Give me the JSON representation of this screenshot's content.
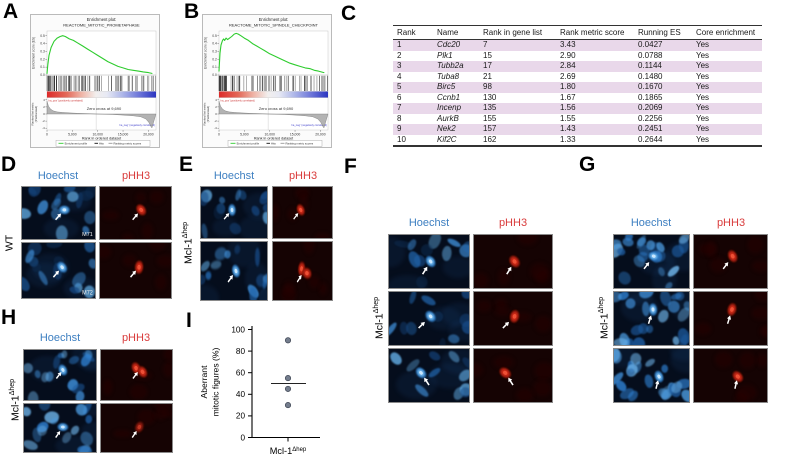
{
  "colors": {
    "hoechst_blue": "#3d7fc1",
    "phh3_red": "#d93b3b",
    "table_stripe": "#e9d8ea",
    "gsea_green": "#2ecc2e",
    "scatter_point": "#5c6679"
  },
  "panel_labels": {
    "A": "A",
    "B": "B",
    "C": "C",
    "D": "D",
    "E": "E",
    "F": "F",
    "G": "G",
    "H": "H",
    "I": "I"
  },
  "gsea_common": {
    "xlabel": "Rank in ordered dataset",
    "es_ylabel": "Enrichment score (ES)",
    "rank_ylabel1": "Ranked list metric",
    "rank_ylabel2": "(PreRanked)",
    "xticks": [
      "0",
      "5,000",
      "10,000",
      "15,000",
      "20,000"
    ],
    "xtick_values": [
      0,
      5000,
      10000,
      15000,
      20000
    ],
    "es_yticks": [
      "0.5",
      "0.4",
      "0.3",
      "0.2",
      "0.1",
      "0.0"
    ],
    "rank_yticks": [
      "4",
      "2",
      "0",
      "-2",
      "-4"
    ],
    "legend": [
      "Enrichment profile",
      "Hits",
      "Ranking metric scores"
    ],
    "pos_note": "'na_pos' (positively correlated)",
    "neg_note": "'na_neg' (negatively correlated)"
  },
  "gsea_a": {
    "title1": "Enrichment plot:",
    "title2": "REACTOME_MITOTIC_PROMETAPHASE",
    "zero_cross": "Zero cross at 9,690"
  },
  "gsea_b": {
    "title1": "Enrichment plot:",
    "title2": "REACTOME_MITOTIC_SPINDLE_CHECKPOINT",
    "zero_cross": "Zero cross at 9,690"
  },
  "table": {
    "headers": [
      "Rank",
      "Name",
      "Rank in gene list",
      "Rank metric score",
      "Running ES",
      "Core enrichment"
    ],
    "rows": [
      [
        "1",
        "Cdc20",
        "7",
        "3.43",
        "0.0427",
        "Yes"
      ],
      [
        "2",
        "Plk1",
        "15",
        "2.90",
        "0.0788",
        "Yes"
      ],
      [
        "3",
        "Tubb2a",
        "17",
        "2.84",
        "0.1144",
        "Yes"
      ],
      [
        "4",
        "Tuba8",
        "21",
        "2.69",
        "0.1480",
        "Yes"
      ],
      [
        "5",
        "Birc5",
        "98",
        "1.80",
        "0.1670",
        "Yes"
      ],
      [
        "6",
        "Ccnb1",
        "130",
        "1.67",
        "0.1865",
        "Yes"
      ],
      [
        "7",
        "Incenp",
        "135",
        "1.56",
        "0.2069",
        "Yes"
      ],
      [
        "8",
        "AurkB",
        "155",
        "1.55",
        "0.2256",
        "Yes"
      ],
      [
        "9",
        "Nek2",
        "157",
        "1.43",
        "0.2451",
        "Yes"
      ],
      [
        "10",
        "Kif2C",
        "162",
        "1.33",
        "0.2644",
        "Yes"
      ]
    ]
  },
  "micro_panels": {
    "D": {
      "col1": "Hoechst",
      "col2": "pHH3",
      "side_base": "WT",
      "side_sup": "",
      "rows": [
        {
          "tag": "M71",
          "arrow": [
            0.46,
            0.63
          ],
          "spot": [
            0.58,
            0.44
          ]
        },
        {
          "tag": "M72",
          "arrow": [
            0.43,
            0.62
          ],
          "spot": [
            0.55,
            0.44
          ]
        }
      ]
    },
    "E": {
      "col1": "Hoechst",
      "col2": "pHH3",
      "side_base": "Mcl-1",
      "side_sup": "Δhep",
      "rows": [
        {
          "arrow": [
            0.35,
            0.63
          ],
          "spot": [
            0.47,
            0.45
          ]
        },
        {
          "arrow": [
            0.41,
            0.69
          ],
          "spot": [
            0.53,
            0.5
          ],
          "double": true
        }
      ]
    },
    "F": {
      "col1": "Hoechst",
      "col2": "pHH3",
      "side_base": "Mcl-1",
      "side_sup": "Δhep",
      "rows": [
        {
          "arrow": [
            0.42,
            0.74
          ],
          "spot": [
            0.52,
            0.5
          ]
        },
        {
          "arrow": [
            0.37,
            0.68
          ],
          "spot": [
            0.52,
            0.46
          ]
        },
        {
          "arrow": [
            0.5,
            0.68
          ],
          "spot": [
            0.4,
            0.45
          ]
        }
      ]
    },
    "G": {
      "col1": "Hoechst",
      "col2": "pHH3",
      "side_base": "Mcl-1",
      "side_sup": "Δhep",
      "rows": [
        {
          "arrow": [
            0.4,
            0.64
          ],
          "spot": [
            0.53,
            0.4
          ]
        },
        {
          "arrow": [
            0.46,
            0.6
          ],
          "spot": [
            0.52,
            0.33
          ]
        },
        {
          "arrow": [
            0.56,
            0.75
          ],
          "spot": [
            0.6,
            0.52
          ]
        }
      ]
    },
    "H": {
      "col1": "Hoechst",
      "col2": "pHH3",
      "side_base": "Mcl-1",
      "side_sup": "Δhep",
      "rows": [
        {
          "arrow": [
            0.45,
            0.57
          ],
          "spot": [
            0.54,
            0.4
          ],
          "double": true
        },
        {
          "arrow": [
            0.44,
            0.7
          ],
          "spot": [
            0.54,
            0.48
          ],
          "dim": true
        }
      ]
    }
  },
  "scatter_labels": {
    "ylabel_line1": "Aberrant",
    "ylabel_line2": "mitotic figures (%)",
    "xlabel_base": "Mcl-1",
    "xlabel_sup": "Δhep"
  },
  "chart_data": [
    {
      "type": "line",
      "title": "Enrichment plot: REACTOME_MITOTIC_PROMETAPHASE",
      "xlabel": "Rank in ordered dataset",
      "ylabel": "Enrichment score (ES)",
      "xlim": [
        0,
        21500
      ],
      "ylim": [
        0,
        0.55
      ],
      "xticks": [
        0,
        5000,
        10000,
        15000,
        20000
      ],
      "annotation": "Zero cross at 9,690",
      "legend_position": "bottom",
      "series": [
        {
          "name": "Enrichment profile",
          "points": [
            [
              0,
              0.02
            ],
            [
              150,
              0.13
            ],
            [
              400,
              0.25
            ],
            [
              800,
              0.35
            ],
            [
              1400,
              0.43
            ],
            [
              2000,
              0.47
            ],
            [
              2600,
              0.49
            ],
            [
              3100,
              0.5
            ],
            [
              3600,
              0.49
            ],
            [
              4400,
              0.46
            ],
            [
              5200,
              0.44
            ],
            [
              6000,
              0.41
            ],
            [
              7000,
              0.37
            ],
            [
              8000,
              0.33
            ],
            [
              9000,
              0.29
            ],
            [
              10000,
              0.25
            ],
            [
              11000,
              0.21
            ],
            [
              12000,
              0.17
            ],
            [
              13000,
              0.14
            ],
            [
              14000,
              0.11
            ],
            [
              15000,
              0.09
            ],
            [
              16000,
              0.07
            ],
            [
              17000,
              0.06
            ],
            [
              18000,
              0.05
            ],
            [
              19000,
              0.04
            ],
            [
              20000,
              0.03
            ],
            [
              20700,
              0.02
            ]
          ]
        },
        {
          "name": "Ranking metric scores",
          "points": [
            [
              0,
              3.6
            ],
            [
              300,
              2.2
            ],
            [
              700,
              1.4
            ],
            [
              1200,
              0.9
            ],
            [
              2000,
              0.6
            ],
            [
              3000,
              0.45
            ],
            [
              4500,
              0.3
            ],
            [
              6000,
              0.2
            ],
            [
              8000,
              0.1
            ],
            [
              9690,
              0
            ],
            [
              11000,
              -0.05
            ],
            [
              13000,
              -0.15
            ],
            [
              15000,
              -0.3
            ],
            [
              17000,
              -0.5
            ],
            [
              18500,
              -0.8
            ],
            [
              19500,
              -1.4
            ],
            [
              20100,
              -2.4
            ],
            [
              20400,
              -3.3
            ],
            [
              20700,
              -3.9
            ]
          ]
        }
      ]
    },
    {
      "type": "line",
      "title": "Enrichment plot: REACTOME_MITOTIC_SPINDLE_CHECKPOINT",
      "xlabel": "Rank in ordered dataset",
      "ylabel": "Enrichment score (ES)",
      "xlim": [
        0,
        21500
      ],
      "ylim": [
        0,
        0.55
      ],
      "xticks": [
        0,
        5000,
        10000,
        15000,
        20000
      ],
      "annotation": "Zero cross at 9,690",
      "legend_position": "bottom",
      "series": [
        {
          "name": "Enrichment profile",
          "points": [
            [
              0,
              0.05
            ],
            [
              200,
              0.28
            ],
            [
              400,
              0.38
            ],
            [
              700,
              0.44
            ],
            [
              900,
              0.46
            ],
            [
              1100,
              0.44
            ],
            [
              1400,
              0.47
            ],
            [
              1700,
              0.45
            ],
            [
              2100,
              0.47
            ],
            [
              2500,
              0.49
            ],
            [
              3000,
              0.52
            ],
            [
              3400,
              0.53
            ],
            [
              3800,
              0.52
            ],
            [
              4300,
              0.5
            ],
            [
              5000,
              0.47
            ],
            [
              5800,
              0.44
            ],
            [
              6600,
              0.4
            ],
            [
              7400,
              0.37
            ],
            [
              8200,
              0.34
            ],
            [
              9000,
              0.31
            ],
            [
              10000,
              0.27
            ],
            [
              11000,
              0.24
            ],
            [
              12000,
              0.21
            ],
            [
              13000,
              0.18
            ],
            [
              14000,
              0.15
            ],
            [
              15000,
              0.13
            ],
            [
              16000,
              0.11
            ],
            [
              17000,
              0.09
            ],
            [
              18000,
              0.08
            ],
            [
              18800,
              0.06
            ],
            [
              19600,
              0.05
            ],
            [
              20700,
              0.03
            ]
          ]
        },
        {
          "name": "Ranking metric scores",
          "points": [
            [
              0,
              3.6
            ],
            [
              300,
              2.2
            ],
            [
              700,
              1.4
            ],
            [
              1200,
              0.9
            ],
            [
              2000,
              0.6
            ],
            [
              3000,
              0.45
            ],
            [
              4500,
              0.3
            ],
            [
              6000,
              0.2
            ],
            [
              8000,
              0.1
            ],
            [
              9690,
              0
            ],
            [
              11000,
              -0.05
            ],
            [
              13000,
              -0.15
            ],
            [
              15000,
              -0.3
            ],
            [
              17000,
              -0.5
            ],
            [
              18500,
              -0.8
            ],
            [
              19500,
              -1.4
            ],
            [
              20100,
              -2.4
            ],
            [
              20400,
              -3.3
            ],
            [
              20700,
              -3.9
            ]
          ]
        }
      ]
    },
    {
      "type": "scatter",
      "title": "",
      "ylabel": "Aberrant mitotic figures (%)",
      "categories": [
        "Mcl-1Δhep"
      ],
      "values": [
        90,
        55,
        45,
        30
      ],
      "median": 50,
      "ylim": [
        0,
        100
      ],
      "yticks": [
        0,
        20,
        40,
        60,
        80,
        100
      ]
    }
  ]
}
